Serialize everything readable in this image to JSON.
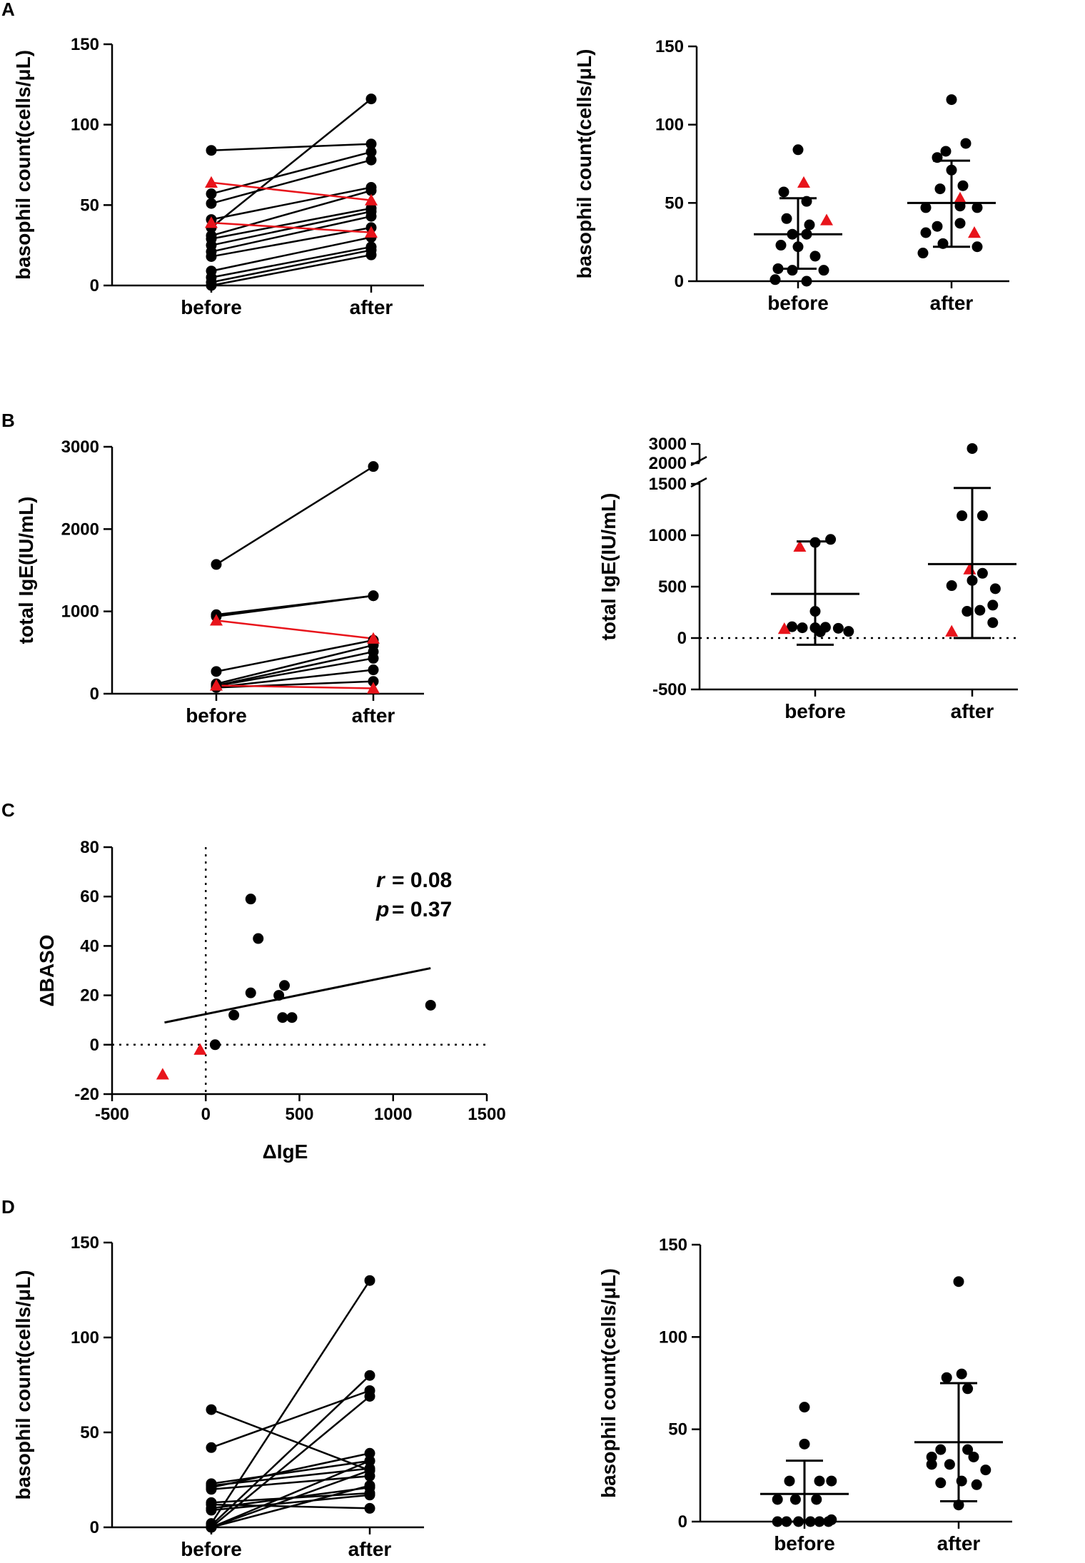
{
  "colors": {
    "black": "#000000",
    "red": "#e8141b"
  },
  "panel_letters": [
    "A",
    "B",
    "C",
    "D"
  ],
  "chart_data": [
    {
      "id": "A-left",
      "type": "line",
      "panel": "A",
      "title": "",
      "ylabel": "basophil count(cells/μL)",
      "xlabel": "",
      "categories": [
        "before",
        "after"
      ],
      "ylim": [
        0,
        150
      ],
      "yticks": [
        "0",
        "50",
        "100",
        "150"
      ],
      "pairs_black": [
        [
          84,
          88
        ],
        [
          57,
          83
        ],
        [
          51,
          78
        ],
        [
          41,
          61
        ],
        [
          36,
          116
        ],
        [
          31,
          59
        ],
        [
          29,
          48
        ],
        [
          25,
          46
        ],
        [
          21,
          43
        ],
        [
          18,
          36
        ],
        [
          9,
          30
        ],
        [
          5,
          24
        ],
        [
          2,
          22
        ],
        [
          0,
          19
        ]
      ],
      "pairs_red": [
        [
          64,
          53
        ],
        [
          39,
          33
        ]
      ]
    },
    {
      "id": "A-right",
      "type": "scatter",
      "panel": "A",
      "title": "",
      "ylabel": "basophil count(cells/μL)",
      "xlabel": "",
      "categories": [
        "before",
        "after"
      ],
      "ylim": [
        0,
        150
      ],
      "yticks": [
        "0",
        "50",
        "100",
        "150"
      ],
      "groups": [
        {
          "name": "before",
          "mean": 30,
          "sd_low": 8,
          "sd_high": 53,
          "points": [
            [
              0,
              84
            ],
            [
              -0.5,
              57
            ],
            [
              0.3,
              51
            ],
            [
              -0.4,
              40
            ],
            [
              0.4,
              36
            ],
            [
              -0.2,
              30
            ],
            [
              0.3,
              30
            ],
            [
              -0.6,
              23
            ],
            [
              0,
              22
            ],
            [
              0.6,
              16
            ],
            [
              -0.7,
              8
            ],
            [
              -0.2,
              7
            ],
            [
              0.9,
              7
            ],
            [
              -0.8,
              1
            ],
            [
              0.3,
              0
            ]
          ],
          "red": [
            [
              0.2,
              63
            ],
            [
              1.0,
              39
            ]
          ]
        },
        {
          "name": "after",
          "mean": 50,
          "sd_low": 22,
          "sd_high": 77,
          "points": [
            [
              0,
              116
            ],
            [
              -0.2,
              83
            ],
            [
              0.5,
              88
            ],
            [
              -0.5,
              79
            ],
            [
              0,
              71
            ],
            [
              0.4,
              61
            ],
            [
              -0.4,
              59
            ],
            [
              0.3,
              48
            ],
            [
              -0.9,
              47
            ],
            [
              0.9,
              47
            ],
            [
              -0.5,
              35
            ],
            [
              0.3,
              37
            ],
            [
              -0.9,
              31
            ],
            [
              0.9,
              22
            ],
            [
              -0.3,
              24
            ],
            [
              -1.0,
              18
            ]
          ],
          "red": [
            [
              0.3,
              53
            ],
            [
              0.8,
              31
            ]
          ]
        }
      ]
    },
    {
      "id": "B-left",
      "type": "line",
      "panel": "B",
      "title": "",
      "ylabel": "total IgE(IU/mL)",
      "xlabel": "",
      "categories": [
        "before",
        "after"
      ],
      "ylim": [
        0,
        3000
      ],
      "yticks": [
        "0",
        "1000",
        "2000",
        "3000"
      ],
      "pairs_black": [
        [
          1570,
          2760
        ],
        [
          960,
          1190
        ],
        [
          940,
          1190
        ],
        [
          270,
          650
        ],
        [
          120,
          590
        ],
        [
          100,
          510
        ],
        [
          95,
          430
        ],
        [
          80,
          290
        ],
        [
          75,
          150
        ]
      ],
      "pairs_red": [
        [
          890,
          670
        ],
        [
          100,
          65
        ]
      ]
    },
    {
      "id": "B-right",
      "type": "scatter",
      "panel": "B",
      "title": "",
      "ylabel": "total IgE(IU/mL)",
      "xlabel": "",
      "categories": [
        "before",
        "after"
      ],
      "y_axis_break": {
        "lower_range": [
          -500,
          1500
        ],
        "upper_ticks": [
          2000,
          3000
        ]
      },
      "ylim": [
        -500,
        3000
      ],
      "yticks": [
        "-500",
        "0",
        "500",
        "1000",
        "1500",
        "2000",
        "3000"
      ],
      "reference_line": 0,
      "groups": [
        {
          "name": "before",
          "mean": 430,
          "sd_low": -65,
          "sd_high": 940,
          "points": [
            [
              0.6,
              960
            ],
            [
              0,
              930
            ],
            [
              0,
              260
            ],
            [
              -0.9,
              110
            ],
            [
              -0.5,
              100
            ],
            [
              0,
              100
            ],
            [
              0.4,
              105
            ],
            [
              0.9,
              95
            ],
            [
              0.2,
              60
            ],
            [
              1.3,
              65
            ]
          ],
          "red": [
            [
              -0.6,
              890
            ],
            [
              -1.2,
              90
            ]
          ]
        },
        {
          "name": "after",
          "mean": 720,
          "sd_low": 0,
          "sd_high": 1460,
          "points": [
            [
              0,
              2760
            ],
            [
              -0.4,
              1190
            ],
            [
              0.4,
              1190
            ],
            [
              0.4,
              630
            ],
            [
              -0.8,
              510
            ],
            [
              0,
              560
            ],
            [
              0.9,
              480
            ],
            [
              0.8,
              320
            ],
            [
              -0.2,
              260
            ],
            [
              0.3,
              270
            ],
            [
              0.8,
              150
            ]
          ],
          "red": [
            [
              -0.1,
              670
            ],
            [
              -0.8,
              65
            ]
          ]
        }
      ]
    },
    {
      "id": "C",
      "type": "scatter",
      "panel": "C",
      "title": "",
      "ylabel": "ΔBASO",
      "xlabel": "ΔIgE",
      "xlim": [
        -500,
        1500
      ],
      "ylim": [
        -20,
        80
      ],
      "xticks": [
        "-500",
        "0",
        "500",
        "1000",
        "1500"
      ],
      "yticks": [
        "-20",
        "0",
        "20",
        "40",
        "60",
        "80"
      ],
      "reference_lines": {
        "x": 0,
        "y": 0
      },
      "points": [
        [
          240,
          59
        ],
        [
          280,
          43
        ],
        [
          240,
          21
        ],
        [
          420,
          24
        ],
        [
          390,
          20
        ],
        [
          150,
          12
        ],
        [
          410,
          11
        ],
        [
          460,
          11
        ],
        [
          1200,
          16
        ],
        [
          50,
          0
        ]
      ],
      "red_points": [
        [
          -230,
          -12
        ],
        [
          -30,
          -2
        ]
      ],
      "regression": {
        "x": [
          -220,
          1200
        ],
        "y": [
          9,
          31
        ]
      },
      "stats": {
        "r_label": "r",
        "r_value": "= 0.08",
        "p_label": "p",
        "p_value": "= 0.37"
      }
    },
    {
      "id": "D-left",
      "type": "line",
      "panel": "D",
      "title": "",
      "ylabel": "basophil count(cells/μL)",
      "xlabel": "",
      "categories": [
        "before",
        "after"
      ],
      "ylim": [
        0,
        150
      ],
      "yticks": [
        "0",
        "50",
        "100",
        "150"
      ],
      "pairs_black": [
        [
          62,
          30
        ],
        [
          42,
          72
        ],
        [
          23,
          35
        ],
        [
          22,
          31
        ],
        [
          21,
          39
        ],
        [
          20,
          27
        ],
        [
          13,
          18
        ],
        [
          12,
          10
        ],
        [
          10,
          21
        ],
        [
          9,
          17
        ],
        [
          2,
          130
        ],
        [
          1,
          80
        ],
        [
          0,
          69
        ],
        [
          0,
          35
        ],
        [
          0,
          22
        ],
        [
          0,
          30
        ]
      ],
      "pairs_red": []
    },
    {
      "id": "D-right",
      "type": "scatter",
      "panel": "D",
      "title": "",
      "ylabel": "basophil count(cells/μL)",
      "xlabel": "",
      "categories": [
        "before",
        "after"
      ],
      "ylim": [
        0,
        150
      ],
      "yticks": [
        "0",
        "50",
        "100",
        "150"
      ],
      "groups": [
        {
          "name": "before",
          "mean": 15,
          "sd_low": 0,
          "sd_high": 33,
          "points": [
            [
              0,
              62
            ],
            [
              0,
              42
            ],
            [
              -0.5,
              22
            ],
            [
              0.5,
              22
            ],
            [
              0.9,
              22
            ],
            [
              -0.9,
              12
            ],
            [
              -0.3,
              12
            ],
            [
              0.4,
              12
            ],
            [
              -0.6,
              0
            ],
            [
              -0.2,
              0
            ],
            [
              0.2,
              0
            ],
            [
              0.5,
              0
            ],
            [
              0.8,
              0
            ],
            [
              -0.9,
              0
            ],
            [
              0.9,
              1
            ]
          ],
          "red": []
        },
        {
          "name": "after",
          "mean": 43,
          "sd_low": 11,
          "sd_high": 75,
          "points": [
            [
              0,
              130
            ],
            [
              -0.4,
              78
            ],
            [
              0.1,
              80
            ],
            [
              0.3,
              72
            ],
            [
              -0.6,
              39
            ],
            [
              0.3,
              39
            ],
            [
              -0.9,
              35
            ],
            [
              0.5,
              35
            ],
            [
              -0.9,
              31
            ],
            [
              -0.3,
              31
            ],
            [
              0.9,
              28
            ],
            [
              0.1,
              22
            ],
            [
              -0.6,
              21
            ],
            [
              0.6,
              20
            ],
            [
              0,
              9
            ]
          ],
          "red": []
        }
      ]
    }
  ]
}
